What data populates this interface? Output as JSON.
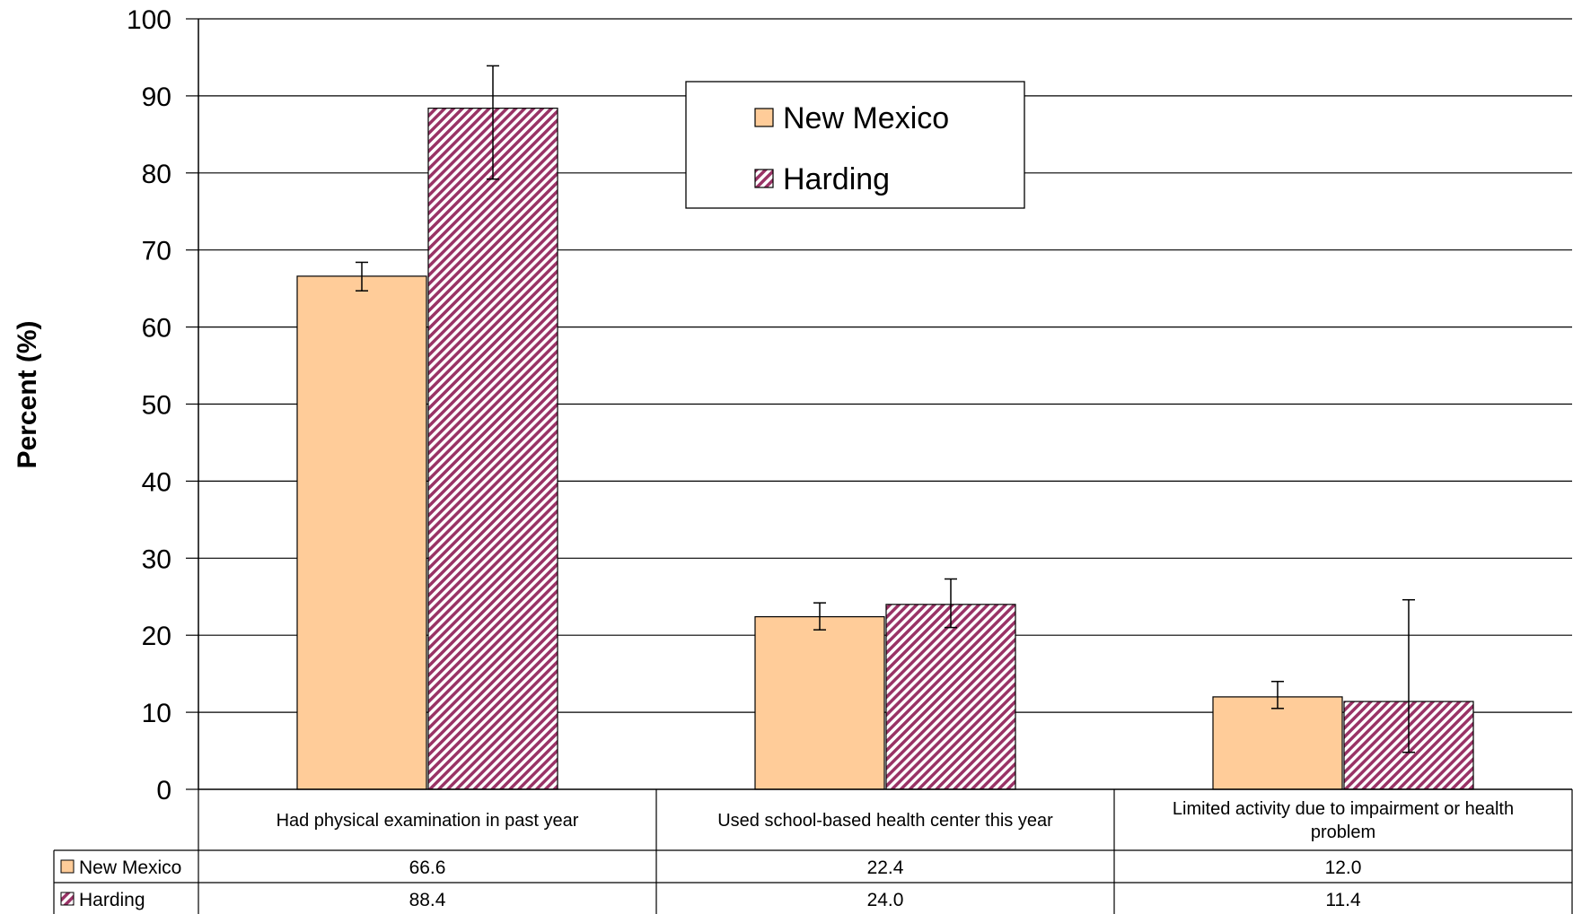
{
  "chart_data": {
    "type": "bar",
    "ylabel": "Percent (%)",
    "ylim": [
      0,
      100
    ],
    "yticks": [
      0,
      10,
      20,
      30,
      40,
      50,
      60,
      70,
      80,
      90,
      100
    ],
    "grid": true,
    "legend_position": "top-center",
    "categories": [
      "Had physical examination in past year",
      "Used school-based health center this year",
      "Limited activity due to impairment or health problem"
    ],
    "series": [
      {
        "name": "New Mexico",
        "color": "#FFCC99",
        "pattern": "solid",
        "values": [
          66.6,
          22.4,
          12.0
        ],
        "display_values": [
          "66.6",
          "22.4",
          "12.0"
        ],
        "error_low": [
          64.7,
          20.7,
          10.5
        ],
        "error_high": [
          68.4,
          24.2,
          14.0
        ]
      },
      {
        "name": "Harding",
        "color": "#993366",
        "pattern": "diagonal-stripes",
        "values": [
          88.4,
          24.0,
          11.4
        ],
        "display_values": [
          "88.4",
          "24.0",
          "11.4"
        ],
        "error_low": [
          79.2,
          21.0,
          4.8
        ],
        "error_high": [
          93.9,
          27.3,
          24.6
        ]
      }
    ]
  }
}
